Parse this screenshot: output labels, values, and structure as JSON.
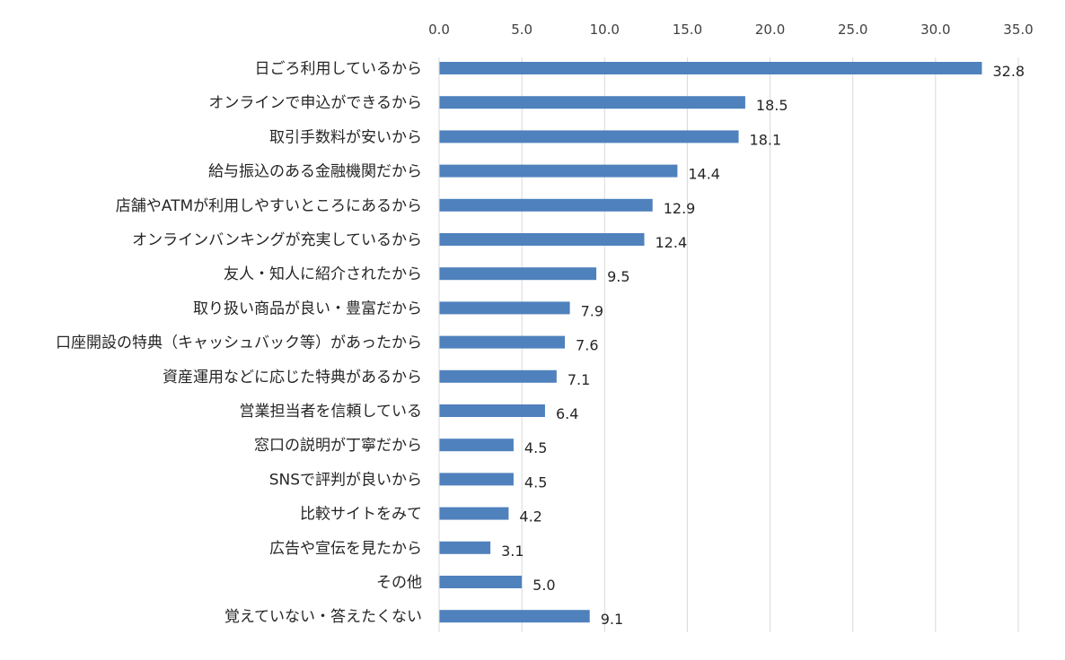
{
  "chart_data": {
    "type": "bar",
    "orientation": "horizontal",
    "categories": [
      "日ごろ利用しているから",
      "オンラインで申込ができるから",
      "取引手数料が安いから",
      "給与振込のある金融機関だから",
      "店舗やATMが利用しやすいところにあるから",
      "オンラインバンキングが充実しているから",
      "友人・知人に紹介されたから",
      "取り扱い商品が良い・豊富だから",
      "口座開設の特典（キャッシュバック等）があったから",
      "資産運用などに応じた特典があるから",
      "営業担当者を信頼している",
      "窓口の説明が丁寧だから",
      "SNSで評判が良いから",
      "比較サイトをみて",
      "広告や宣伝を見たから",
      "その他",
      "覚えていない・答えたくない"
    ],
    "values": [
      32.8,
      18.5,
      18.1,
      14.4,
      12.9,
      12.4,
      9.5,
      7.9,
      7.6,
      7.1,
      6.4,
      4.5,
      4.5,
      4.2,
      3.1,
      5.0,
      9.1
    ],
    "value_labels": [
      "32.8",
      "18.5",
      "18.1",
      "14.4",
      "12.9",
      "12.4",
      "9.5",
      "7.9",
      "7.6",
      "7.1",
      "6.4",
      "4.5",
      "4.5",
      "4.2",
      "3.1",
      "5.0",
      "9.1"
    ],
    "x_ticks": [
      "0.0",
      "5.0",
      "10.0",
      "15.0",
      "20.0",
      "25.0",
      "30.0",
      "35.0"
    ],
    "x_tick_values": [
      0,
      5,
      10,
      15,
      20,
      25,
      30,
      35
    ],
    "xlim": [
      0,
      35
    ],
    "axis_position": "top",
    "grid": true,
    "legend": false,
    "title": "",
    "xlabel": "",
    "ylabel": "",
    "bar_color": "#4F81BD",
    "grid_color": "#D9D9D9",
    "text_color": "#404040",
    "label_color": "#262626"
  }
}
